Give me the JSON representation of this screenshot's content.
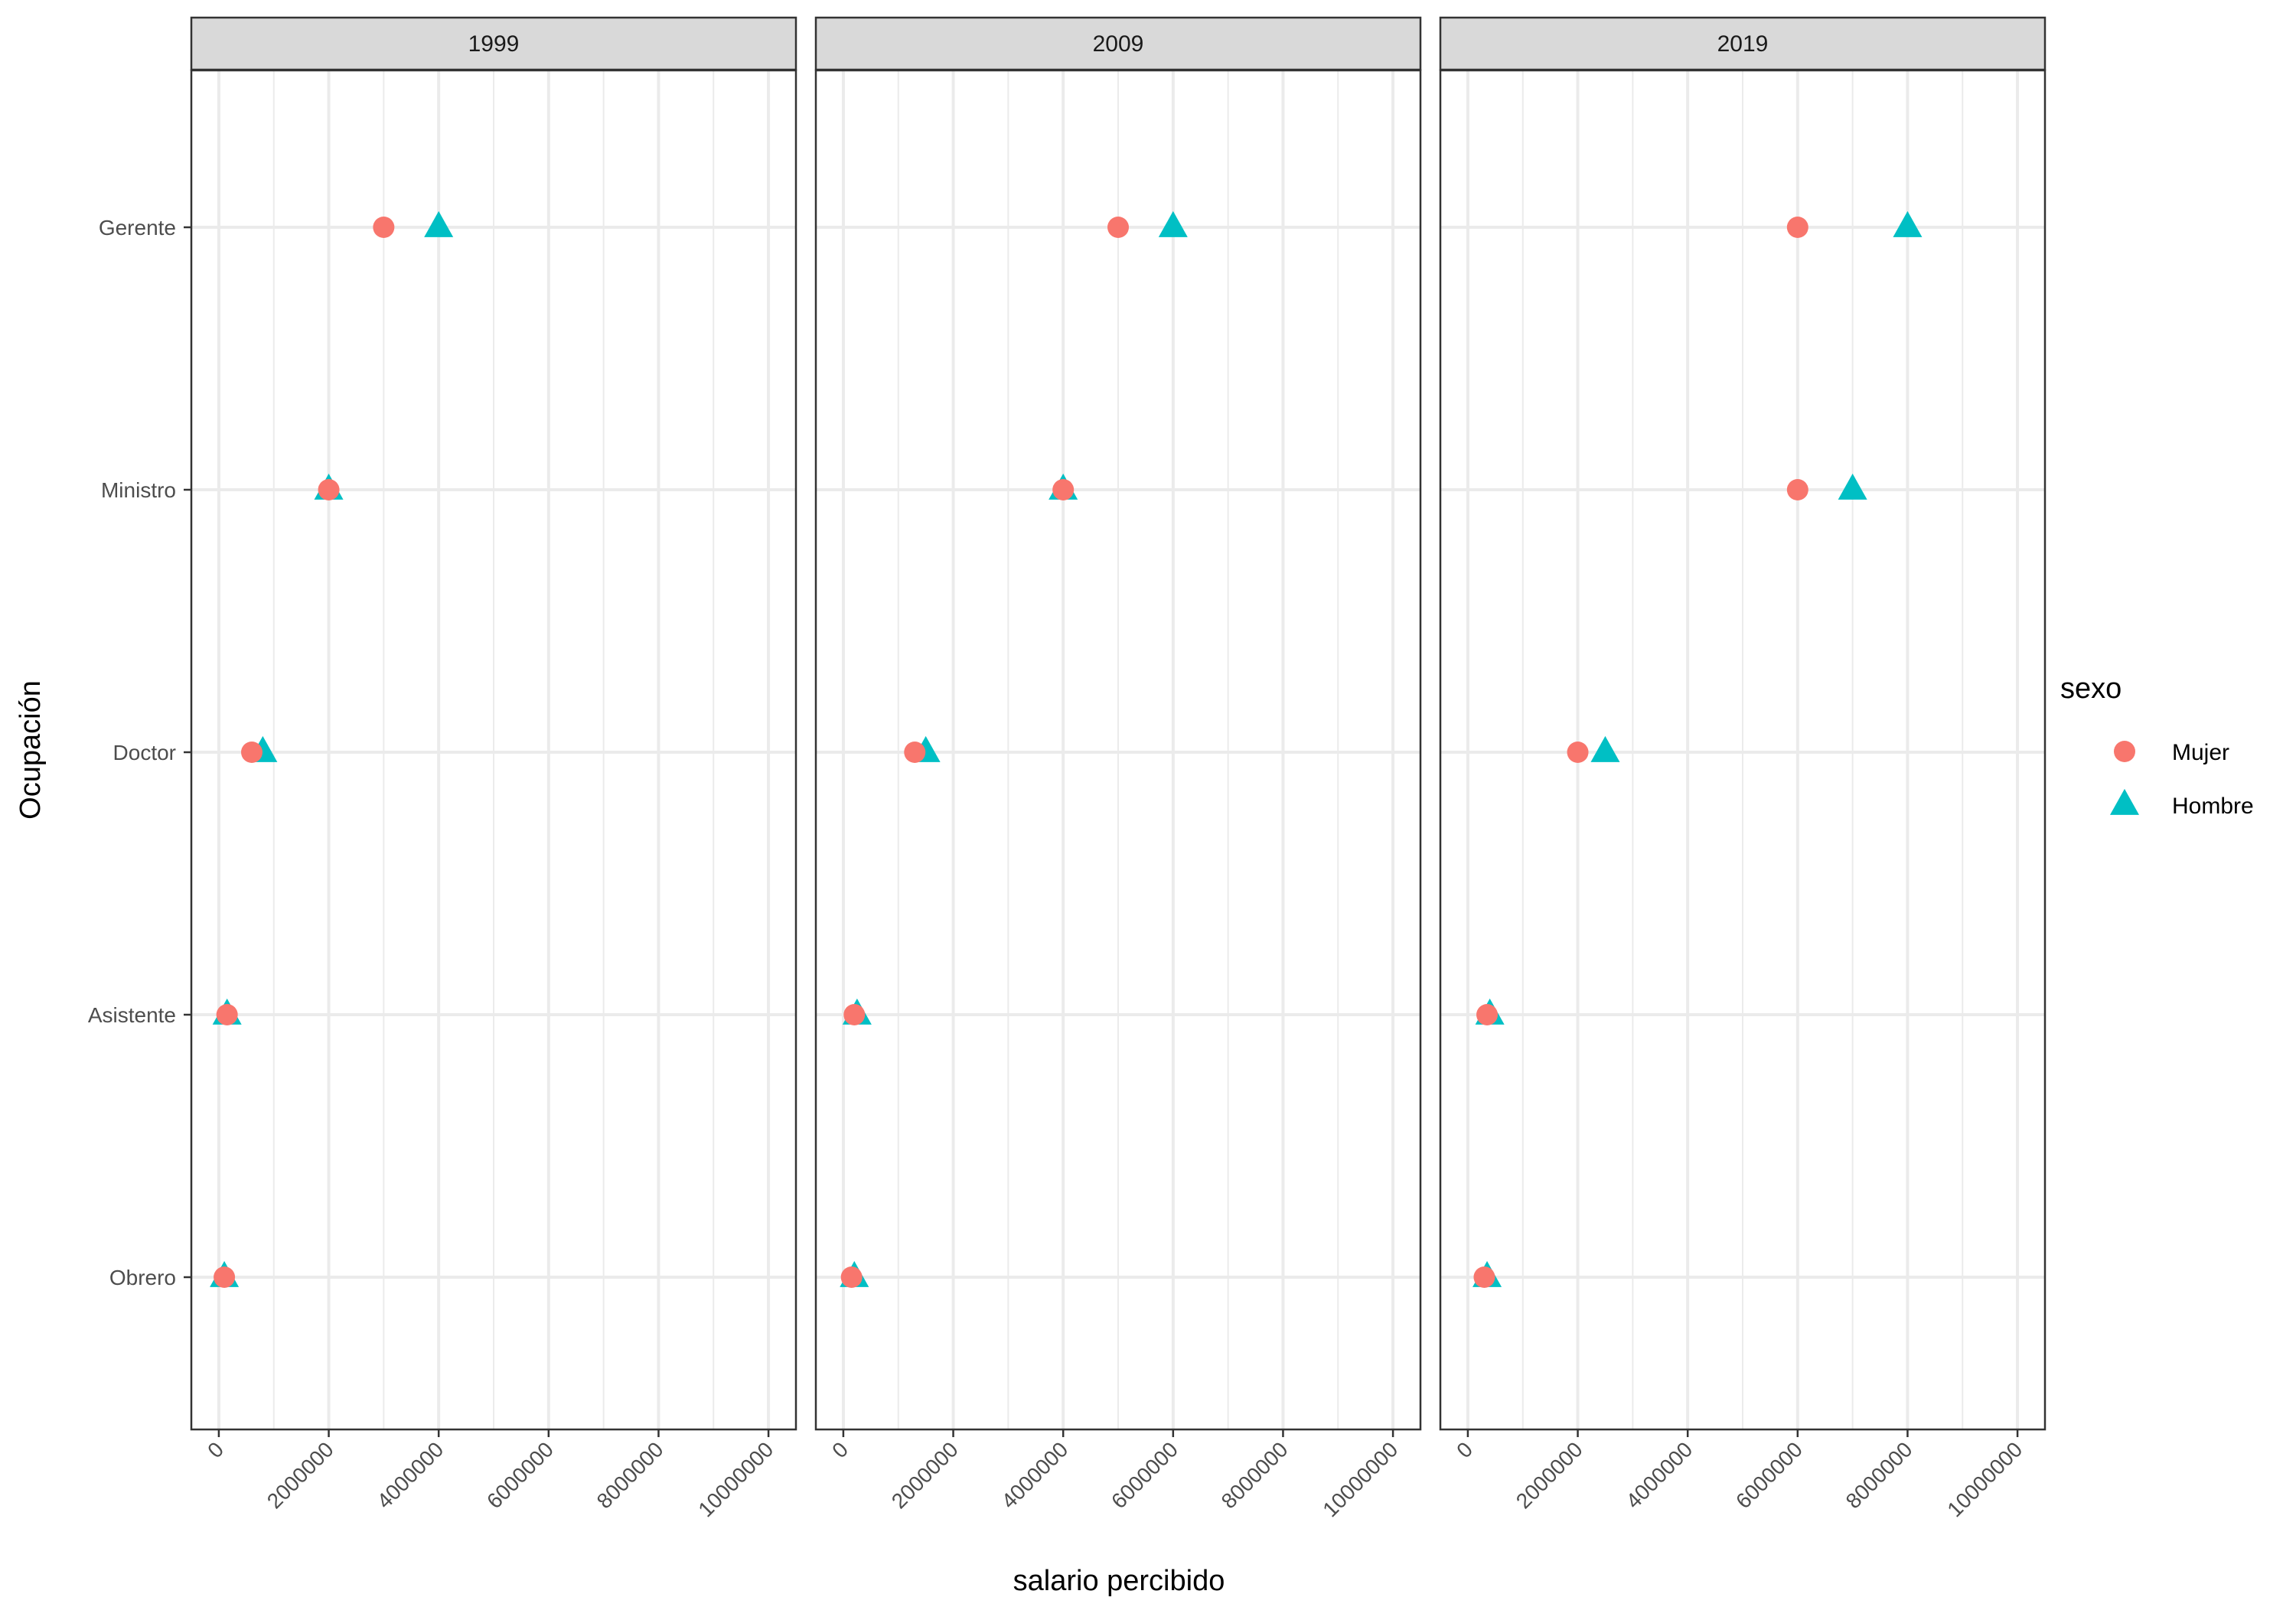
{
  "chart_data": {
    "type": "scatter",
    "xlabel": "salario percibido",
    "ylabel": "Ocupación",
    "xlim": [
      -500000,
      10500000
    ],
    "x_ticks": [
      0,
      2000000,
      4000000,
      6000000,
      8000000,
      10000000
    ],
    "x_tick_labels": [
      "0",
      "2000000",
      "4000000",
      "6000000",
      "8000000",
      "10000000"
    ],
    "categories": [
      "Gerente",
      "Ministro",
      "Doctor",
      "Asistente",
      "Obrero"
    ],
    "facets": [
      "1999",
      "2009",
      "2019"
    ],
    "grid": true,
    "legend": {
      "title": "sexo",
      "position": "right",
      "entries": [
        {
          "name": "Mujer",
          "color": "#F8766D",
          "shape": "circle"
        },
        {
          "name": "Hombre",
          "color": "#00BFC4",
          "shape": "triangle"
        }
      ]
    },
    "series": [
      {
        "name": "Mujer",
        "points": {
          "1999": {
            "Gerente": 3000000,
            "Ministro": 2000000,
            "Doctor": 600000,
            "Asistente": 150000,
            "Obrero": 100000
          },
          "2009": {
            "Gerente": 5000000,
            "Ministro": 4000000,
            "Doctor": 1300000,
            "Asistente": 200000,
            "Obrero": 150000
          },
          "2019": {
            "Gerente": 6000000,
            "Ministro": 6000000,
            "Doctor": 2000000,
            "Asistente": 350000,
            "Obrero": 300000
          }
        }
      },
      {
        "name": "Hombre",
        "points": {
          "1999": {
            "Gerente": 4000000,
            "Ministro": 2000000,
            "Doctor": 800000,
            "Asistente": 150000,
            "Obrero": 100000
          },
          "2009": {
            "Gerente": 6000000,
            "Ministro": 4000000,
            "Doctor": 1500000,
            "Asistente": 250000,
            "Obrero": 200000
          },
          "2019": {
            "Gerente": 8000000,
            "Ministro": 7000000,
            "Doctor": 2500000,
            "Asistente": 400000,
            "Obrero": 350000
          }
        }
      }
    ]
  }
}
